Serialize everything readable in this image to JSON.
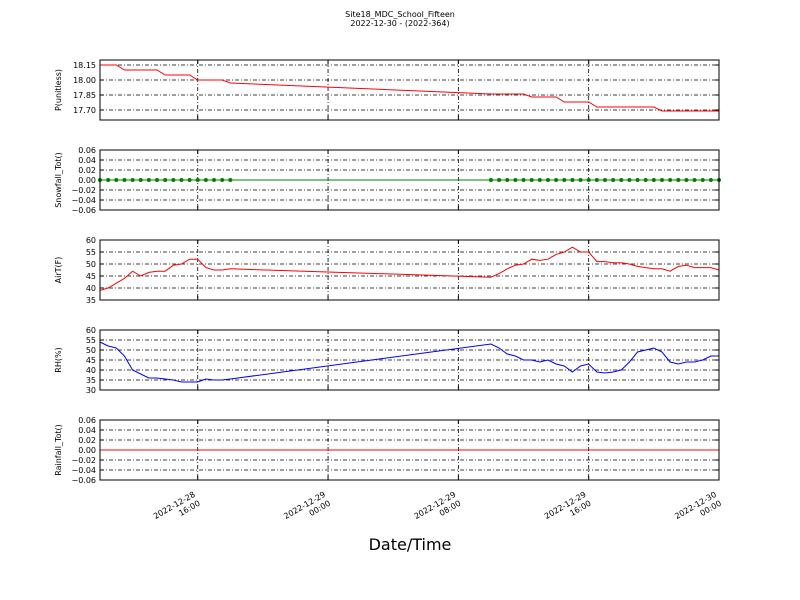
{
  "chart_data": [
    {
      "type": "line",
      "title": "Site18_MDC_School_Fifteen",
      "subtitle": "2022-12-30 - (2022-364)",
      "ylabel": "P(unitless)",
      "color": "#ff0000",
      "markers": false,
      "grid": true,
      "xlim": [
        "2022-12-28 10:00",
        "2022-12-30 00:00"
      ],
      "x": [
        "2022-12-28 10:00",
        "2022-12-28 10:30",
        "2022-12-28 11:00",
        "2022-12-28 11:30",
        "2022-12-28 12:00",
        "2022-12-28 12:30",
        "2022-12-28 13:00",
        "2022-12-28 13:30",
        "2022-12-28 14:00",
        "2022-12-28 14:30",
        "2022-12-28 15:00",
        "2022-12-28 15:30",
        "2022-12-28 16:00",
        "2022-12-28 16:30",
        "2022-12-28 17:00",
        "2022-12-28 17:30",
        "2022-12-28 18:00",
        "2022-12-29 10:00",
        "2022-12-29 10:30",
        "2022-12-29 11:00",
        "2022-12-29 11:30",
        "2022-12-29 12:00",
        "2022-12-29 12:30",
        "2022-12-29 13:00",
        "2022-12-29 13:30",
        "2022-12-29 14:00",
        "2022-12-29 14:30",
        "2022-12-29 15:00",
        "2022-12-29 15:30",
        "2022-12-29 16:00",
        "2022-12-29 16:30",
        "2022-12-29 17:00",
        "2022-12-29 17:30",
        "2022-12-29 18:00",
        "2022-12-29 18:30",
        "2022-12-29 19:00",
        "2022-12-29 19:30",
        "2022-12-29 20:00",
        "2022-12-29 20:30",
        "2022-12-29 21:00",
        "2022-12-29 21:30",
        "2022-12-29 22:00",
        "2022-12-29 22:30",
        "2022-12-29 23:00",
        "2022-12-29 23:30",
        "2022-12-30 00:00"
      ],
      "values": [
        18.15,
        18.15,
        18.15,
        18.1,
        18.1,
        18.1,
        18.1,
        18.1,
        18.05,
        18.05,
        18.05,
        18.05,
        18.0,
        18.0,
        18.0,
        18.0,
        17.97,
        17.86,
        17.86,
        17.86,
        17.86,
        17.86,
        17.83,
        17.83,
        17.83,
        17.83,
        17.78,
        17.78,
        17.78,
        17.78,
        17.73,
        17.73,
        17.73,
        17.73,
        17.73,
        17.73,
        17.73,
        17.73,
        17.69,
        17.69,
        17.69,
        17.69,
        17.69,
        17.69,
        17.69,
        17.69
      ],
      "ylim": [
        17.6,
        18.2
      ],
      "yticks": [
        {
          "value": 17.7,
          "label": "17.70"
        },
        {
          "value": 17.85,
          "label": "17.85"
        },
        {
          "value": 18.0,
          "label": "18.00"
        },
        {
          "value": 18.15,
          "label": "18.15"
        }
      ]
    },
    {
      "type": "line",
      "ylabel": "Snowfall_Tot()",
      "color": "#008000",
      "markers": true,
      "grid": true,
      "values": [
        0,
        0,
        0,
        0,
        0,
        0,
        0,
        0,
        0,
        0,
        0,
        0,
        0,
        0,
        0,
        0,
        0,
        0,
        0,
        0,
        0,
        0,
        0,
        0,
        0,
        0,
        0,
        0,
        0,
        0,
        0,
        0,
        0,
        0,
        0,
        0,
        0,
        0,
        0,
        0,
        0,
        0,
        0,
        0,
        0,
        0
      ],
      "ylim": [
        -0.06,
        0.06
      ],
      "yticks": [
        {
          "value": -0.06,
          "label": "−0.06"
        },
        {
          "value": -0.04,
          "label": "−0.04"
        },
        {
          "value": -0.02,
          "label": "−0.02"
        },
        {
          "value": 0,
          "label": "0.00"
        },
        {
          "value": 0.02,
          "label": "0.02"
        },
        {
          "value": 0.04,
          "label": "0.04"
        },
        {
          "value": 0.06,
          "label": "0.06"
        }
      ]
    },
    {
      "type": "line",
      "ylabel": "AirT(F)",
      "color": "#ff0000",
      "markers": false,
      "grid": true,
      "values": [
        39,
        40,
        42,
        44,
        47,
        45,
        46.5,
        47,
        47,
        49.5,
        50,
        52,
        52,
        48.5,
        47.5,
        47.5,
        48,
        44.5,
        46,
        48,
        49.5,
        50,
        52,
        51.5,
        52,
        54,
        55,
        57,
        55,
        55,
        51,
        51,
        50.5,
        50.5,
        50,
        49,
        48.5,
        48,
        48,
        47,
        49,
        49.5,
        48.5,
        48.5,
        48.5,
        47.5
      ],
      "ylim": [
        35,
        60
      ],
      "yticks": [
        35,
        40,
        45,
        50,
        55,
        60
      ]
    },
    {
      "type": "line",
      "ylabel": "RH(%)",
      "color": "#0000ff",
      "markers": false,
      "grid": true,
      "values": [
        54,
        52,
        51,
        47,
        40,
        38,
        36,
        36,
        35.5,
        35,
        34,
        34,
        34,
        35.5,
        35,
        35,
        35.5,
        53,
        51,
        48,
        47,
        45,
        45,
        44,
        45,
        43,
        42,
        39,
        42,
        43,
        39,
        38.5,
        39,
        40,
        44,
        49,
        50,
        51,
        49,
        44,
        43,
        44,
        44,
        45,
        47,
        47
      ],
      "ylim": [
        30,
        60
      ],
      "yticks": [
        30,
        35,
        40,
        45,
        50,
        55,
        60
      ]
    },
    {
      "type": "line",
      "ylabel": "Rainfall_Tot()",
      "xlabel": "Date/Time",
      "color": "#ff0000",
      "markers": false,
      "grid": true,
      "values": [
        0,
        0,
        0,
        0,
        0,
        0,
        0,
        0,
        0,
        0,
        0,
        0,
        0,
        0,
        0,
        0,
        0,
        0,
        0,
        0,
        0,
        0,
        0,
        0,
        0,
        0,
        0,
        0,
        0,
        0,
        0,
        0,
        0,
        0,
        0,
        0,
        0,
        0,
        0,
        0,
        0,
        0,
        0,
        0,
        0,
        0
      ],
      "ylim": [
        -0.06,
        0.06
      ],
      "yticks": [
        {
          "value": -0.06,
          "label": "−0.06"
        },
        {
          "value": -0.04,
          "label": "−0.04"
        },
        {
          "value": -0.02,
          "label": "−0.02"
        },
        {
          "value": 0,
          "label": "0.00"
        },
        {
          "value": 0.02,
          "label": "0.02"
        },
        {
          "value": 0.04,
          "label": "0.04"
        },
        {
          "value": 0.06,
          "label": "0.06"
        }
      ],
      "xticks": [
        "2022-12-28 16:00",
        "2022-12-29 00:00",
        "2022-12-29 08:00",
        "2022-12-29 16:00",
        "2022-12-30 00:00"
      ]
    }
  ]
}
